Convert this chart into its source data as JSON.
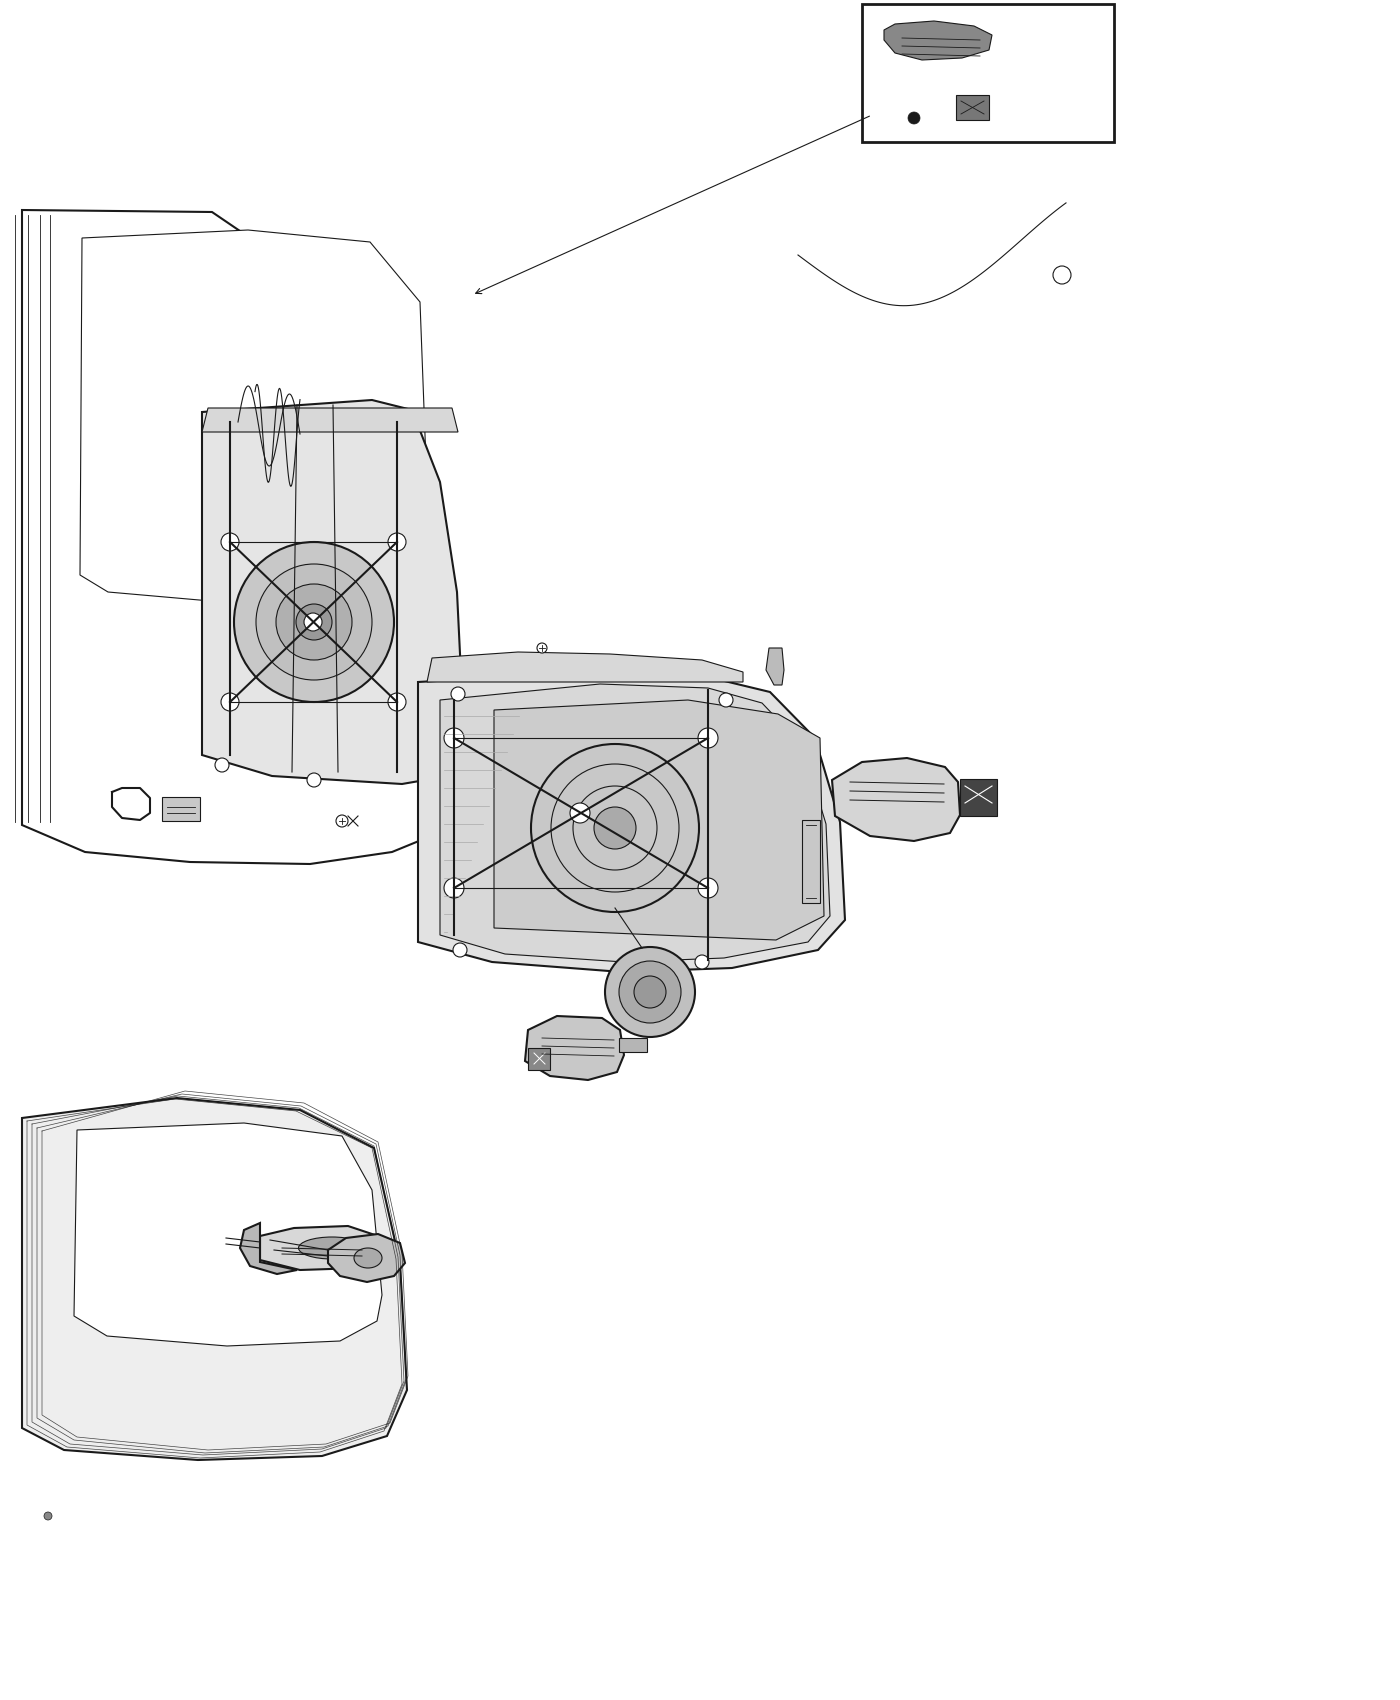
{
  "background_color": "#ffffff",
  "line_color": "#1a1a1a",
  "figsize": [
    14.0,
    17.0
  ],
  "dpi": 100,
  "xlim": [
    0,
    1400
  ],
  "ylim": [
    0,
    1700
  ],
  "lw_main": 1.5,
  "lw_thin": 0.8,
  "lw_thick": 2.0,
  "gray_light": "#e5e5e5",
  "gray_mid": "#c8c8c8",
  "gray_dark": "#999999",
  "gray_panel": "#d8d8d8",
  "black_conn": "#444444"
}
